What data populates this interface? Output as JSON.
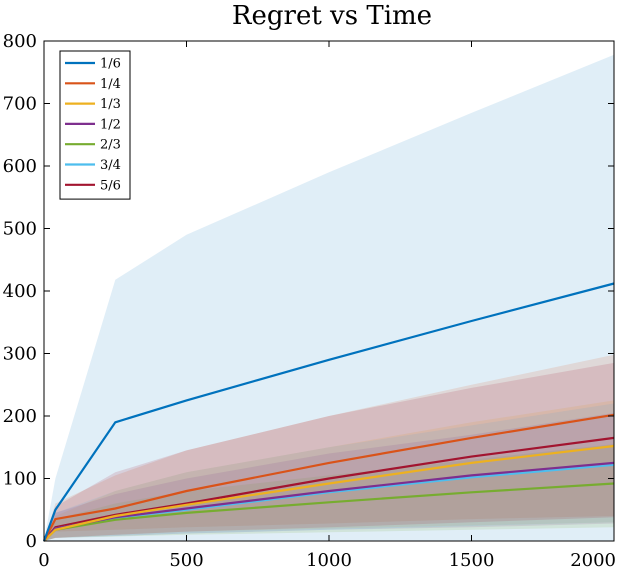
{
  "chart_data": {
    "type": "line",
    "title": "Regret vs Time",
    "xlabel": "",
    "ylabel": "",
    "xlim": [
      0,
      2000
    ],
    "ylim": [
      0,
      800
    ],
    "xticks": [
      0,
      500,
      1000,
      1500,
      2000
    ],
    "yticks": [
      0,
      100,
      200,
      300,
      400,
      500,
      600,
      700,
      800
    ],
    "grid": false,
    "legend": "top-left",
    "series": [
      {
        "name": "1/6",
        "color": "#0072BD",
        "x": [
          0,
          40,
          250,
          500,
          1000,
          1500,
          2000
        ],
        "y": [
          0,
          50,
          190,
          225,
          290,
          352,
          412
        ],
        "band_lower": [
          0,
          0,
          0,
          0,
          0,
          0,
          0
        ],
        "band_upper": [
          0,
          100,
          418,
          490,
          590,
          685,
          778
        ]
      },
      {
        "name": "1/4",
        "color": "#D95319",
        "x": [
          0,
          40,
          250,
          500,
          1000,
          1500,
          2000
        ],
        "y": [
          0,
          35,
          52,
          80,
          125,
          165,
          202
        ],
        "band_lower": [
          0,
          15,
          18,
          22,
          28,
          35,
          40
        ],
        "band_upper": [
          0,
          60,
          105,
          145,
          200,
          250,
          298
        ]
      },
      {
        "name": "1/3",
        "color": "#EDB120",
        "x": [
          0,
          40,
          250,
          500,
          1000,
          1500,
          2000
        ],
        "y": [
          0,
          18,
          40,
          58,
          92,
          125,
          152
        ],
        "band_lower": [
          0,
          5,
          10,
          15,
          20,
          25,
          30
        ],
        "band_upper": [
          0,
          40,
          80,
          110,
          150,
          190,
          225
        ]
      },
      {
        "name": "1/2",
        "color": "#7E2F8E",
        "x": [
          0,
          40,
          250,
          500,
          1000,
          1500,
          2000
        ],
        "y": [
          0,
          20,
          38,
          52,
          80,
          105,
          125
        ],
        "band_lower": [
          0,
          5,
          8,
          12,
          18,
          22,
          28
        ],
        "band_upper": [
          0,
          45,
          75,
          100,
          140,
          170,
          205
        ]
      },
      {
        "name": "2/3",
        "color": "#77AC30",
        "x": [
          0,
          40,
          250,
          500,
          1000,
          1500,
          2000
        ],
        "y": [
          0,
          18,
          34,
          45,
          62,
          78,
          92
        ],
        "band_lower": [
          0,
          5,
          7,
          10,
          14,
          18,
          22
        ],
        "band_upper": [
          0,
          35,
          60,
          80,
          105,
          130,
          155
        ]
      },
      {
        "name": "3/4",
        "color": "#4DBEEE",
        "x": [
          0,
          40,
          250,
          500,
          1000,
          1500,
          2000
        ],
        "y": [
          0,
          20,
          37,
          50,
          78,
          102,
          122
        ],
        "band_lower": [
          0,
          5,
          8,
          12,
          18,
          24,
          30
        ],
        "band_upper": [
          0,
          45,
          80,
          110,
          150,
          185,
          220
        ]
      },
      {
        "name": "5/6",
        "color": "#A2142F",
        "x": [
          0,
          40,
          250,
          500,
          1000,
          1500,
          2000
        ],
        "y": [
          0,
          22,
          42,
          60,
          100,
          135,
          165
        ],
        "band_lower": [
          0,
          5,
          10,
          15,
          22,
          30,
          38
        ],
        "band_upper": [
          0,
          55,
          110,
          145,
          200,
          245,
          285
        ]
      }
    ]
  }
}
